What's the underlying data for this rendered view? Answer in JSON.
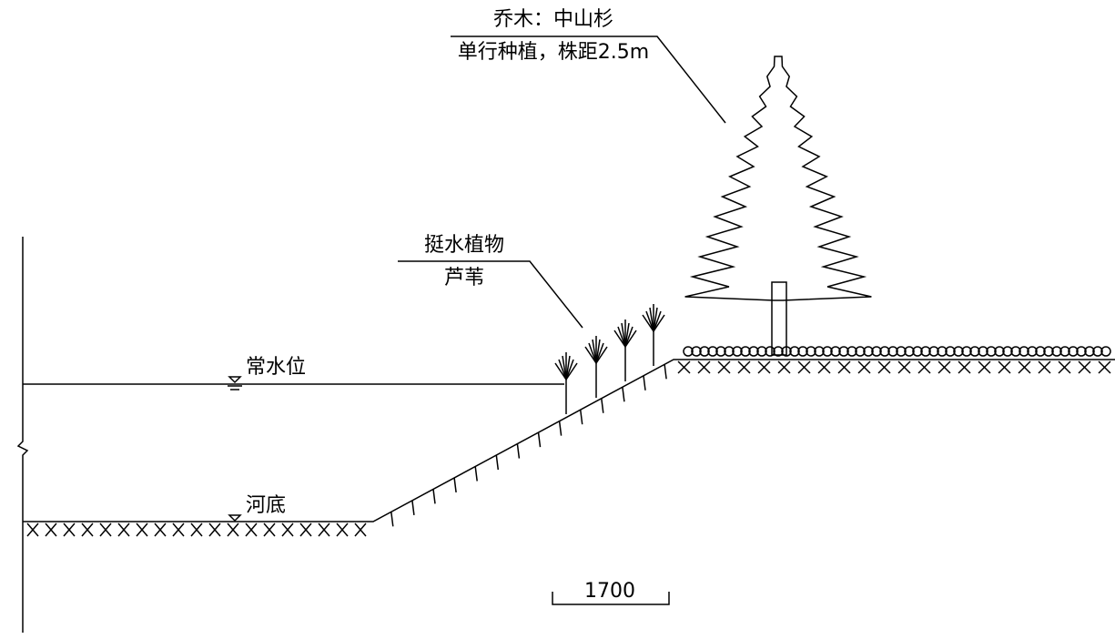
{
  "tree_label": {
    "line1": "乔木：中山杉",
    "line2": "单行种植，株距2.5m"
  },
  "reed_label": {
    "line1": "挺水植物",
    "line2": "芦苇"
  },
  "water_level": "常水位",
  "river_bottom": "河底",
  "scale_bar": "1700"
}
